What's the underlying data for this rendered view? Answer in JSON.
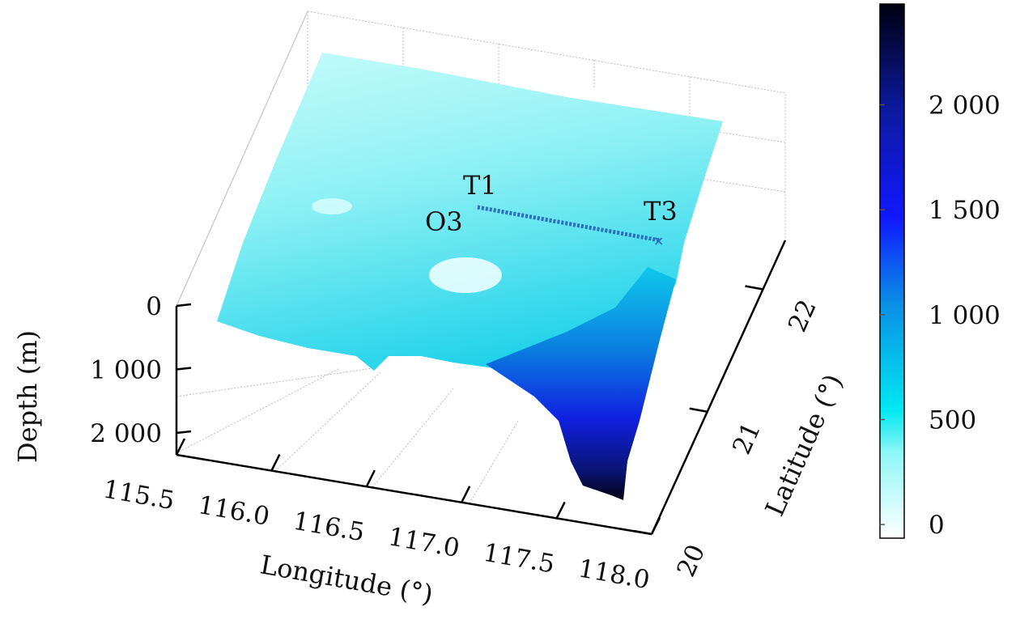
{
  "chart_data": {
    "type": "surface3d",
    "title": "",
    "xlabel": "Longitude (°)",
    "ylabel": "Latitude (°)",
    "zlabel": "Depth (m)",
    "x_ticks": [
      "115.5",
      "116.0",
      "116.5",
      "117.0",
      "117.5",
      "118.0"
    ],
    "x_tick_values": [
      115.5,
      116.0,
      116.5,
      117.0,
      117.5,
      118.0
    ],
    "xlim": [
      115.5,
      118.0
    ],
    "y_ticks": [
      "20",
      "21",
      "22"
    ],
    "y_tick_values": [
      20,
      21,
      22
    ],
    "ylim": [
      20,
      22.4
    ],
    "z_ticks": [
      "0",
      "1 000",
      "2 000"
    ],
    "z_tick_values": [
      0,
      1000,
      2000
    ],
    "zlim": [
      0,
      2350
    ],
    "z_reversed": true,
    "colorbar": {
      "ticks": [
        "0",
        "500",
        "1 000",
        "1 500",
        "2 000"
      ],
      "tick_values": [
        0,
        500,
        1000,
        1500,
        2000
      ],
      "range": [
        -65,
        2480
      ],
      "colors": [
        "#ffffff",
        "#8ff7f7",
        "#00e8f0",
        "#0a8fe6",
        "#1018ff",
        "#0c1aa0",
        "#000010"
      ]
    },
    "annotations": [
      {
        "text": "T1"
      },
      {
        "text": "O3"
      },
      {
        "text": "T3"
      }
    ],
    "track": {
      "from": "O3/T1",
      "to": "T3",
      "marker": "x",
      "color": "#2a6fb8"
    },
    "grid": true
  }
}
